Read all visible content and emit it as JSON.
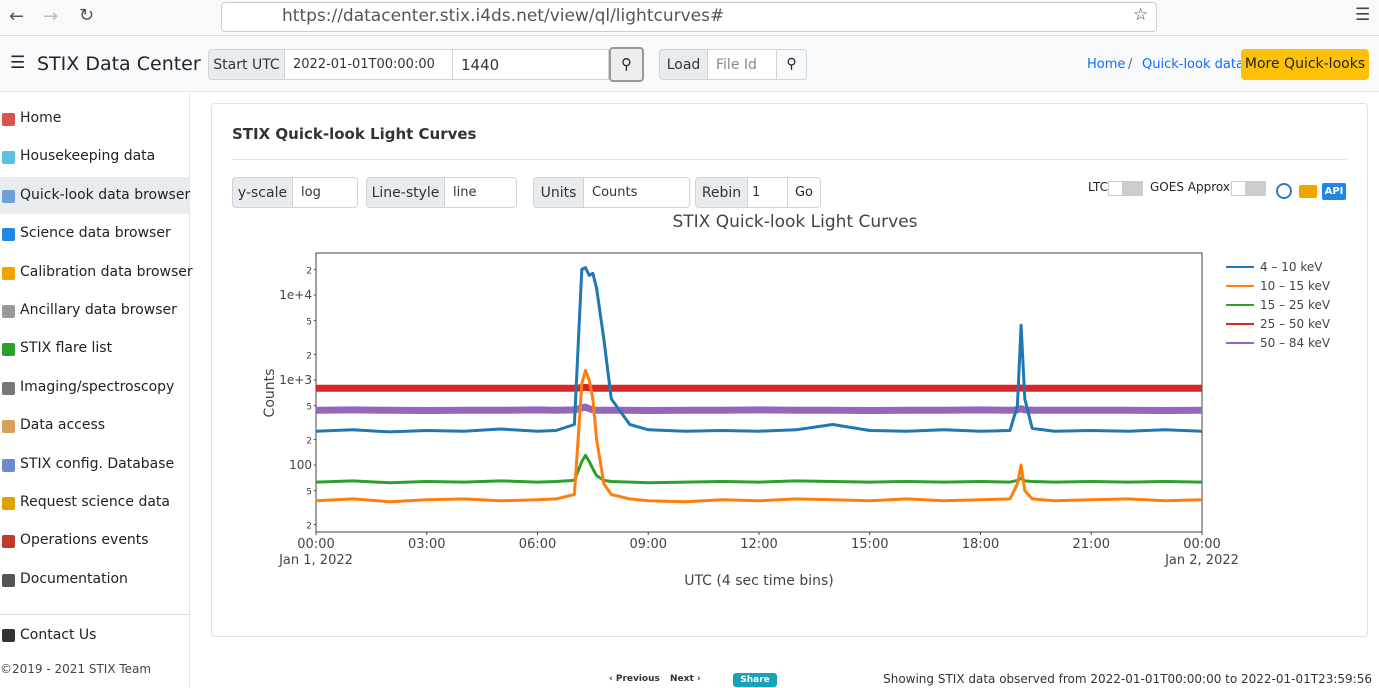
{
  "browser": {
    "url": "https://datacenter.stix.i4ds.net/view/ql/lightcurves#"
  },
  "header": {
    "title": "STIX Data Center",
    "start_label": "Start UTC",
    "start_value": "2022-01-01T00:00:00",
    "duration_value": "1440",
    "load_label": "Load",
    "file_placeholder": "File Id",
    "breadcrumb": [
      "Home",
      "/",
      "Quick-look data"
    ],
    "more_button": "More Quick-looks"
  },
  "sidebar": {
    "items": [
      "Home",
      "Housekeeping data",
      "Quick-look data browser",
      "Science data browser",
      "Calibration data browser",
      "Ancillary data browser",
      "STIX flare list",
      "Imaging/spectroscopy",
      "Data access",
      "STIX config. Database",
      "Request science data",
      "Operations events",
      "Documentation"
    ],
    "contact": "Contact Us",
    "copyright": "©2019 - 2021 STIX Team"
  },
  "card": {
    "title": "STIX Quick-look Light Curves",
    "controls": {
      "yscale_label": "y-scale",
      "yscale_value": "log",
      "linestyle_label": "Line-style",
      "linestyle_value": "line",
      "units_label": "Units",
      "units_value": "Counts",
      "rebin_label": "Rebin",
      "rebin_value": "1",
      "go": "Go",
      "ltc": "LTC",
      "goes": "GOES Approx.",
      "api": "API"
    }
  },
  "chart_data": {
    "type": "line",
    "title": "STIX Quick-look Light Curves",
    "ylabel": "Counts",
    "xlabel": "UTC (4 sec time bins)",
    "log_y": true,
    "grid": false,
    "legend": "right-top",
    "xlim": [
      0,
      24
    ],
    "xticks": [
      {
        "value": 0,
        "label": "00:00"
      },
      {
        "value": 3,
        "label": "03:00"
      },
      {
        "value": 6,
        "label": "06:00"
      },
      {
        "value": 9,
        "label": "09:00"
      },
      {
        "value": 12,
        "label": "12:00"
      },
      {
        "value": 15,
        "label": "15:00"
      },
      {
        "value": 18,
        "label": "18:00"
      },
      {
        "value": 21,
        "label": "21:00"
      },
      {
        "value": 24,
        "label": "00:00"
      }
    ],
    "xtick_dates": [
      {
        "value": 0,
        "label": "Jan 1, 2022"
      },
      {
        "value": 24,
        "label": "Jan 2, 2022"
      }
    ],
    "ylim": [
      16.3,
      31200
    ],
    "yticks": [
      {
        "value": 20,
        "label": "2"
      },
      {
        "value": 50,
        "label": "5"
      },
      100,
      {
        "value": 200,
        "label": "2"
      },
      {
        "value": 500,
        "label": "5"
      },
      {
        "value": 1000,
        "label": "1e+3"
      },
      {
        "value": 2000,
        "label": "2"
      },
      {
        "value": 5000,
        "label": "5"
      },
      {
        "value": 10000,
        "label": "1e+4"
      },
      {
        "value": 20000,
        "label": "2"
      }
    ],
    "x": [
      0,
      1,
      2,
      3,
      4,
      5,
      6,
      6.5,
      7.0,
      7.2,
      7.3,
      7.4,
      7.5,
      7.6,
      7.8,
      8.0,
      8.5,
      9,
      10,
      11,
      12,
      13,
      14,
      15,
      16,
      17,
      18,
      18.8,
      19.0,
      19.1,
      19.2,
      19.4,
      20,
      21,
      22,
      23,
      24
    ],
    "series": [
      {
        "name": "4 – 10 keV",
        "color": "#1f77b4",
        "values": [
          250,
          260,
          245,
          255,
          250,
          265,
          250,
          255,
          300,
          20000,
          21000,
          17000,
          18000,
          12000,
          3000,
          600,
          300,
          260,
          250,
          255,
          250,
          260,
          300,
          255,
          250,
          260,
          250,
          255,
          500,
          4400,
          600,
          270,
          250,
          255,
          250,
          260,
          250
        ]
      },
      {
        "name": "10 – 15 keV",
        "color": "#ff7f0e",
        "values": [
          38,
          40,
          37,
          39,
          40,
          38,
          39,
          40,
          45,
          900,
          1300,
          1000,
          600,
          200,
          60,
          45,
          40,
          38,
          37,
          39,
          38,
          40,
          39,
          38,
          40,
          38,
          39,
          40,
          60,
          100,
          50,
          40,
          38,
          39,
          40,
          38,
          39
        ]
      },
      {
        "name": "15 – 25 keV",
        "color": "#2ca02c",
        "values": [
          63,
          65,
          62,
          64,
          63,
          65,
          63,
          64,
          66,
          110,
          130,
          110,
          90,
          75,
          66,
          64,
          63,
          62,
          63,
          64,
          63,
          65,
          64,
          63,
          64,
          63,
          64,
          63,
          66,
          70,
          65,
          64,
          63,
          64,
          63,
          64,
          63
        ]
      },
      {
        "name": "25 – 50 keV",
        "color": "#d62728",
        "values": [
          800,
          800,
          800,
          800,
          800,
          800,
          800,
          800,
          800,
          810,
          820,
          810,
          800,
          800,
          800,
          800,
          800,
          800,
          800,
          800,
          800,
          800,
          800,
          800,
          800,
          800,
          800,
          800,
          800,
          805,
          800,
          800,
          800,
          800,
          800,
          800,
          800
        ]
      },
      {
        "name": "50 – 84 keV",
        "color": "#9467bd",
        "values": [
          440,
          445,
          440,
          438,
          442,
          440,
          445,
          440,
          445,
          470,
          480,
          460,
          445,
          440,
          442,
          440,
          440,
          438,
          442,
          440,
          445,
          440,
          440,
          438,
          442,
          440,
          445,
          440,
          445,
          460,
          445,
          440,
          440,
          442,
          440,
          438,
          440
        ]
      }
    ]
  },
  "footer": {
    "previous": "‹ Previous",
    "next": "Next ›",
    "share": "Share",
    "status": "Showing STIX data observed from 2022-01-01T00:00:00 to 2022-01-01T23:59:56"
  }
}
